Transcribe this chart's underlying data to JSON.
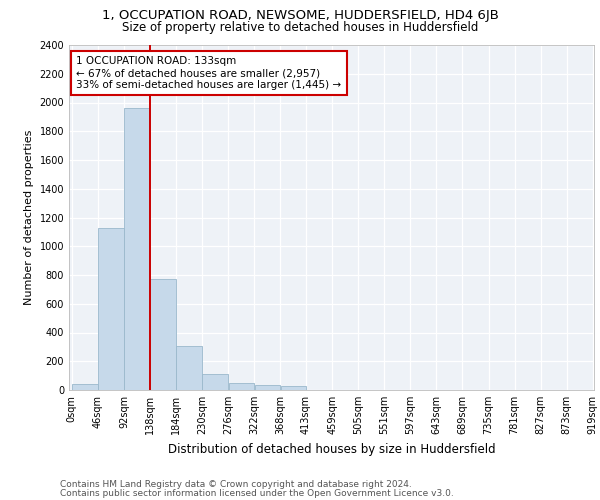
{
  "title1": "1, OCCUPATION ROAD, NEWSOME, HUDDERSFIELD, HD4 6JB",
  "title2": "Size of property relative to detached houses in Huddersfield",
  "xlabel": "Distribution of detached houses by size in Huddersfield",
  "ylabel": "Number of detached properties",
  "footnote1": "Contains HM Land Registry data © Crown copyright and database right 2024.",
  "footnote2": "Contains public sector information licensed under the Open Government Licence v3.0.",
  "bin_edges": [
    0,
    46,
    92,
    138,
    184,
    230,
    276,
    322,
    368,
    413,
    459,
    505,
    551,
    597,
    643,
    689,
    735,
    781,
    827,
    873,
    919
  ],
  "bar_heights": [
    40,
    1130,
    1960,
    770,
    305,
    110,
    50,
    38,
    25,
    0,
    0,
    0,
    0,
    0,
    0,
    0,
    0,
    0,
    0,
    0
  ],
  "bar_color": "#c6d9ea",
  "bar_edgecolor": "#9ab8cc",
  "property_line_x": 138,
  "property_size": 133,
  "pct_smaller": 67,
  "count_smaller": "2,957",
  "pct_larger": 33,
  "count_larger": "1,445",
  "ylim": [
    0,
    2400
  ],
  "yticks": [
    0,
    200,
    400,
    600,
    800,
    1000,
    1200,
    1400,
    1600,
    1800,
    2000,
    2200,
    2400
  ],
  "annotation_line_color": "#cc0000",
  "background_color": "#eef2f7",
  "title1_fontsize": 9.5,
  "title2_fontsize": 8.5,
  "xlabel_fontsize": 8.5,
  "ylabel_fontsize": 8,
  "footnote_fontsize": 6.5,
  "tick_fontsize": 7,
  "annot_fontsize": 7.5
}
